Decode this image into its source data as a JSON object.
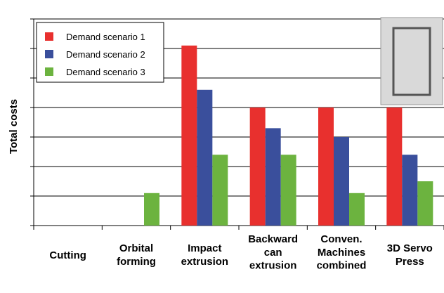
{
  "chart_data": {
    "type": "bar",
    "y_label": "Total costs",
    "categories": [
      "Cutting",
      "Orbital\nforming",
      "Impact\nextrusion",
      "Backward\ncan\nextrusion",
      "Conven.\nMachines\ncombined",
      "3D Servo\nPress"
    ],
    "series": [
      {
        "name": "Demand scenario 1",
        "color": "#e8302e",
        "values": [
          null,
          null,
          6.1,
          4.0,
          4.0,
          4.0
        ]
      },
      {
        "name": "Demand scenario 2",
        "color": "#3a4f9c",
        "values": [
          null,
          null,
          4.6,
          3.3,
          3.0,
          2.4
        ]
      },
      {
        "name": "Demand scenario 3",
        "color": "#6cb33f",
        "values": [
          null,
          1.1,
          2.4,
          2.4,
          1.1,
          1.5
        ]
      }
    ],
    "ylim": [
      0,
      7
    ],
    "grid": true,
    "legend": "upper left"
  }
}
